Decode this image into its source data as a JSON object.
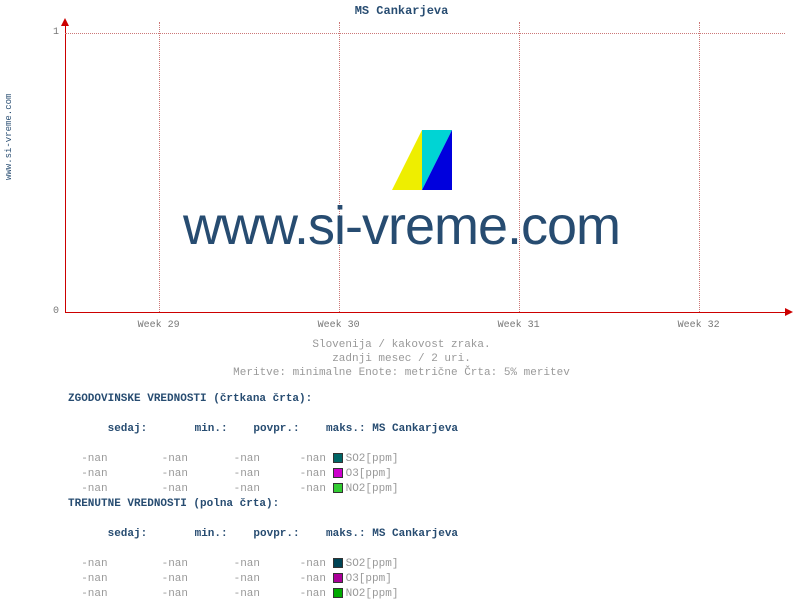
{
  "title": "MS Cankarjeva",
  "vertical_label": "www.si-vreme.com",
  "watermark": "www.si-vreme.com",
  "subtitle": {
    "line1": "Slovenija / kakovost zraka.",
    "line2": "zadnji mesec / 2 uri.",
    "line3": "Meritve: minimalne  Enote: metrične  Črta: 5% meritev"
  },
  "chart": {
    "type": "line",
    "ylim": [
      0,
      1
    ],
    "yticks": [
      0,
      1
    ],
    "xticks": [
      "Week 29",
      "Week 30",
      "Week 31",
      "Week 32"
    ],
    "xtick_positions": [
      0.13,
      0.38,
      0.63,
      0.88
    ],
    "plot_bg": "#ffffff",
    "axis_color": "#cc0000",
    "grid_color": "#cc7777",
    "grid_style": "dotted",
    "tick_label_color": "#777777",
    "tick_fontsize": 10
  },
  "historical": {
    "header": "ZGODOVINSKE VREDNOSTI (črtkana črta):",
    "columns": {
      "sedaj": "sedaj:",
      "min": "min.:",
      "povpr": "povpr.:",
      "maks": "maks.:",
      "station": "MS Cankarjeva"
    },
    "rows": [
      {
        "sedaj": "-nan",
        "min": "-nan",
        "povpr": "-nan",
        "maks": "-nan",
        "series": "SO2[ppm]",
        "color": "#006666"
      },
      {
        "sedaj": "-nan",
        "min": "-nan",
        "povpr": "-nan",
        "maks": "-nan",
        "series": "O3[ppm]",
        "color": "#cc00cc"
      },
      {
        "sedaj": "-nan",
        "min": "-nan",
        "povpr": "-nan",
        "maks": "-nan",
        "series": "NO2[ppm]",
        "color": "#33cc33"
      }
    ]
  },
  "current": {
    "header": "TRENUTNE VREDNOSTI (polna črta):",
    "columns": {
      "sedaj": "sedaj:",
      "min": "min.:",
      "povpr": "povpr.:",
      "maks": "maks.:",
      "station": "MS Cankarjeva"
    },
    "rows": [
      {
        "sedaj": "-nan",
        "min": "-nan",
        "povpr": "-nan",
        "maks": "-nan",
        "series": "SO2[ppm]",
        "color": "#004455"
      },
      {
        "sedaj": "-nan",
        "min": "-nan",
        "povpr": "-nan",
        "maks": "-nan",
        "series": "O3[ppm]",
        "color": "#aa0099"
      },
      {
        "sedaj": "-nan",
        "min": "-nan",
        "povpr": "-nan",
        "maks": "-nan",
        "series": "NO2[ppm]",
        "color": "#00aa00"
      }
    ]
  },
  "colors": {
    "title": "#274c71",
    "watermark": "#274c71",
    "subtitle": "#999999",
    "value": "#999999"
  }
}
